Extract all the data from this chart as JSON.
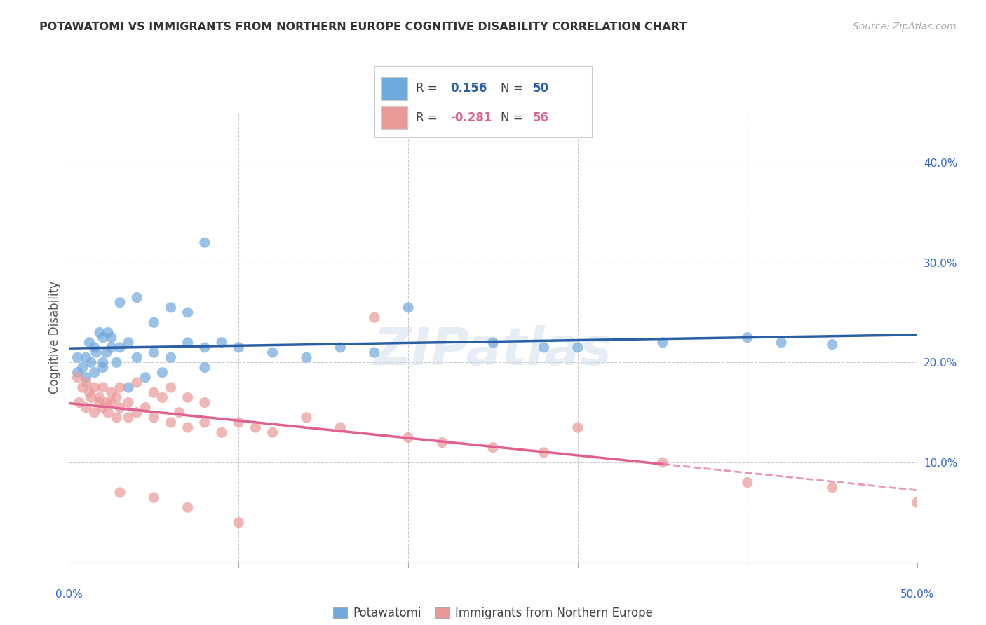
{
  "title": "POTAWATOMI VS IMMIGRANTS FROM NORTHERN EUROPE COGNITIVE DISABILITY CORRELATION CHART",
  "source": "Source: ZipAtlas.com",
  "ylabel": "Cognitive Disability",
  "xlim": [
    0.0,
    50.0
  ],
  "ylim": [
    0.0,
    45.0
  ],
  "ytick_vals": [
    10.0,
    20.0,
    30.0,
    40.0
  ],
  "legend1_r": "0.156",
  "legend1_n": "50",
  "legend2_r": "-0.281",
  "legend2_n": "56",
  "blue_color": "#6fa8dc",
  "pink_color": "#ea9999",
  "blue_line_color": "#2a5fa5",
  "pink_line_color": "#e06090",
  "watermark": "ZIPatlas",
  "blue_scatter": [
    [
      0.5,
      19.0
    ],
    [
      1.0,
      20.5
    ],
    [
      1.2,
      22.0
    ],
    [
      1.5,
      21.5
    ],
    [
      1.8,
      23.0
    ],
    [
      2.0,
      22.5
    ],
    [
      2.2,
      21.0
    ],
    [
      2.5,
      22.5
    ],
    [
      2.8,
      20.0
    ],
    [
      3.0,
      21.5
    ],
    [
      0.8,
      19.5
    ],
    [
      1.3,
      20.0
    ],
    [
      1.6,
      21.0
    ],
    [
      2.0,
      19.5
    ],
    [
      2.3,
      23.0
    ],
    [
      0.5,
      20.5
    ],
    [
      1.0,
      18.5
    ],
    [
      1.5,
      19.0
    ],
    [
      2.0,
      20.0
    ],
    [
      2.5,
      21.5
    ],
    [
      3.5,
      22.0
    ],
    [
      4.0,
      20.5
    ],
    [
      5.0,
      21.0
    ],
    [
      6.0,
      20.5
    ],
    [
      7.0,
      22.0
    ],
    [
      8.0,
      21.5
    ],
    [
      9.0,
      22.0
    ],
    [
      10.0,
      21.5
    ],
    [
      12.0,
      21.0
    ],
    [
      14.0,
      20.5
    ],
    [
      16.0,
      21.5
    ],
    [
      18.0,
      21.0
    ],
    [
      20.0,
      25.5
    ],
    [
      25.0,
      22.0
    ],
    [
      28.0,
      21.5
    ],
    [
      30.0,
      21.5
    ],
    [
      35.0,
      22.0
    ],
    [
      40.0,
      22.5
    ],
    [
      42.0,
      22.0
    ],
    [
      45.0,
      21.8
    ],
    [
      3.0,
      26.0
    ],
    [
      4.0,
      26.5
    ],
    [
      5.0,
      24.0
    ],
    [
      6.0,
      25.5
    ],
    [
      7.0,
      25.0
    ],
    [
      3.5,
      17.5
    ],
    [
      4.5,
      18.5
    ],
    [
      5.5,
      19.0
    ],
    [
      8.0,
      19.5
    ],
    [
      8.0,
      32.0
    ]
  ],
  "pink_scatter": [
    [
      0.5,
      18.5
    ],
    [
      0.8,
      17.5
    ],
    [
      1.0,
      18.0
    ],
    [
      1.2,
      17.0
    ],
    [
      1.5,
      17.5
    ],
    [
      1.8,
      16.5
    ],
    [
      2.0,
      17.5
    ],
    [
      2.2,
      16.0
    ],
    [
      2.5,
      17.0
    ],
    [
      2.8,
      16.5
    ],
    [
      0.6,
      16.0
    ],
    [
      1.0,
      15.5
    ],
    [
      1.3,
      16.5
    ],
    [
      1.5,
      15.0
    ],
    [
      1.8,
      16.0
    ],
    [
      2.0,
      15.5
    ],
    [
      2.3,
      15.0
    ],
    [
      2.5,
      16.0
    ],
    [
      2.8,
      14.5
    ],
    [
      3.0,
      15.5
    ],
    [
      3.5,
      14.5
    ],
    [
      4.0,
      15.0
    ],
    [
      5.0,
      14.5
    ],
    [
      6.0,
      14.0
    ],
    [
      7.0,
      13.5
    ],
    [
      8.0,
      14.0
    ],
    [
      9.0,
      13.0
    ],
    [
      10.0,
      14.0
    ],
    [
      11.0,
      13.5
    ],
    [
      12.0,
      13.0
    ],
    [
      3.0,
      17.5
    ],
    [
      4.0,
      18.0
    ],
    [
      5.0,
      17.0
    ],
    [
      6.0,
      17.5
    ],
    [
      7.0,
      16.5
    ],
    [
      8.0,
      16.0
    ],
    [
      3.5,
      16.0
    ],
    [
      4.5,
      15.5
    ],
    [
      5.5,
      16.5
    ],
    [
      6.5,
      15.0
    ],
    [
      14.0,
      14.5
    ],
    [
      16.0,
      13.5
    ],
    [
      18.0,
      24.5
    ],
    [
      20.0,
      12.5
    ],
    [
      22.0,
      12.0
    ],
    [
      25.0,
      11.5
    ],
    [
      28.0,
      11.0
    ],
    [
      30.0,
      13.5
    ],
    [
      35.0,
      10.0
    ],
    [
      40.0,
      8.0
    ],
    [
      45.0,
      7.5
    ],
    [
      50.0,
      6.0
    ],
    [
      3.0,
      7.0
    ],
    [
      5.0,
      6.5
    ],
    [
      7.0,
      5.5
    ],
    [
      10.0,
      4.0
    ]
  ]
}
